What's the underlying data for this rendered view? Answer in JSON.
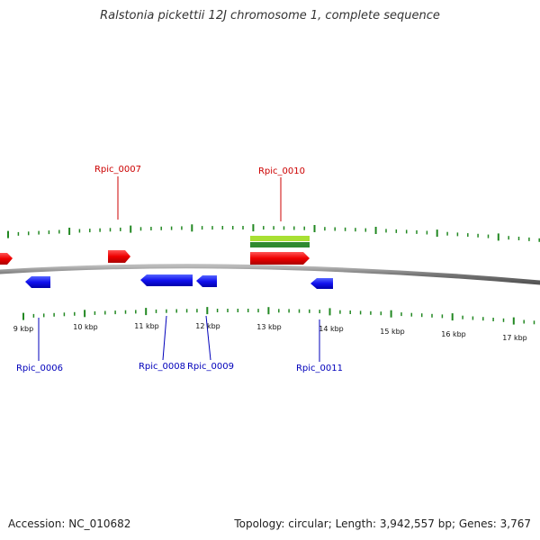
{
  "title": "Ralstonia pickettii 12J chromosome 1, complete sequence",
  "footer": {
    "accession_label": "Accession:",
    "accession": "NC_010682",
    "topology_label": "Topology:",
    "topology": "circular",
    "length_label": "Length:",
    "length": "3,942,557 bp",
    "genes_label": "Genes:",
    "genes": "3,767"
  },
  "colors": {
    "forward_gene": "#ee1111",
    "reverse_gene": "#1111ee",
    "forward_label": "#cc0000",
    "reverse_label": "#0000bb",
    "tick": "#228822",
    "backbone": "#808080",
    "feature_light": "#99dd22",
    "feature_dark": "#338833"
  },
  "scale_labels": [
    "9 kbp",
    "10 kbp",
    "11 kbp",
    "12 kbp",
    "13 kbp",
    "14 kbp",
    "15 kbp",
    "16 kbp",
    "17 kbp"
  ],
  "forward_genes": [
    "Rpic_0007",
    "Rpic_0010"
  ],
  "reverse_genes": [
    "Rpic_0006",
    "Rpic_0008",
    "Rpic_0009",
    "Rpic_0011"
  ]
}
